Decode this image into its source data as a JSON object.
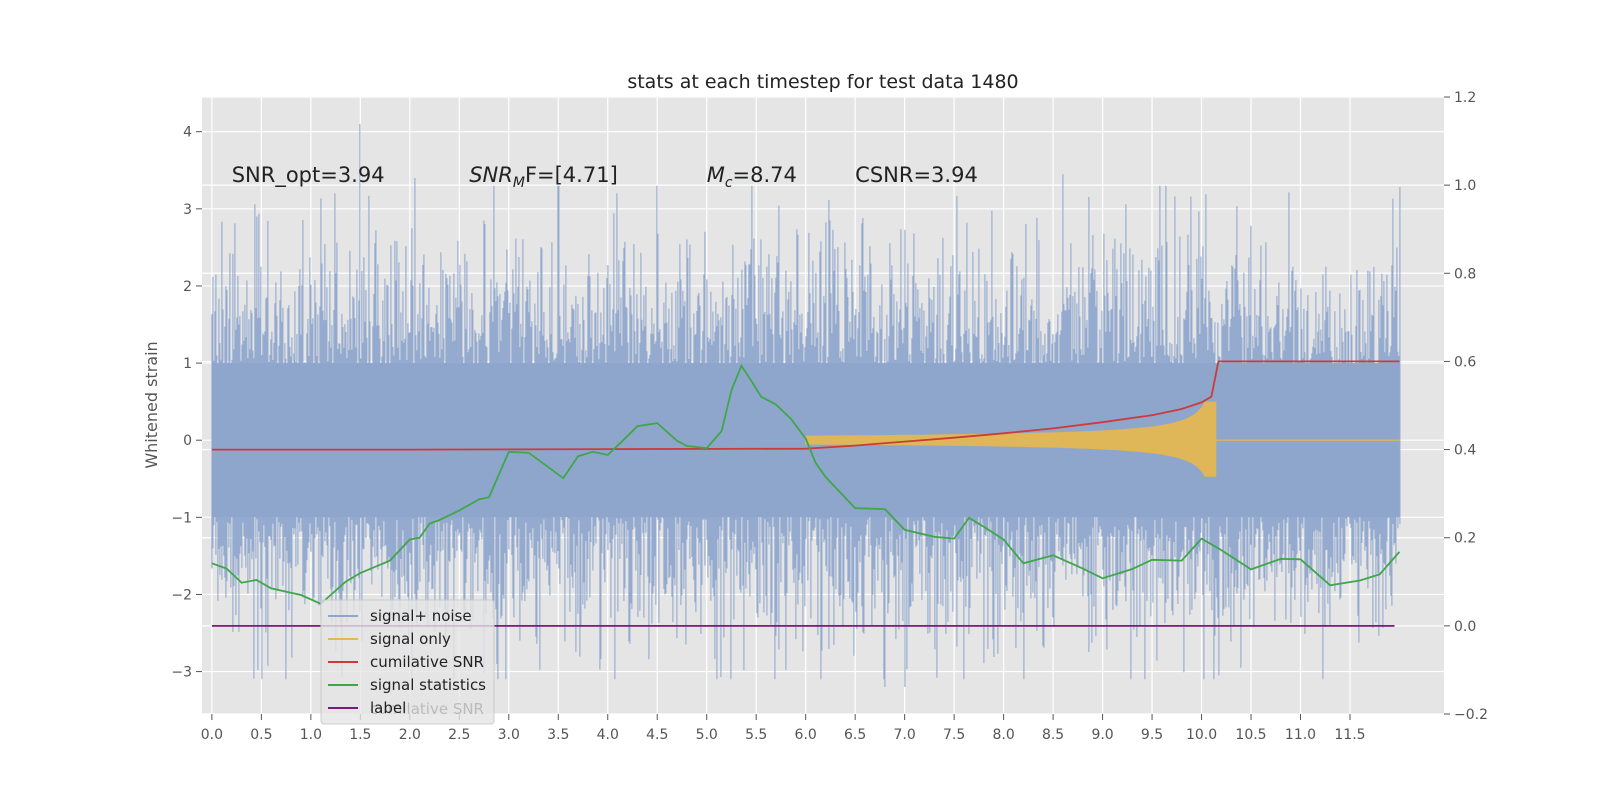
{
  "chart_data": {
    "type": "line",
    "title": "stats at each timestep for test data 1480",
    "ylabel": "Whitened strain",
    "xlabel": "",
    "xlim": [
      -0.1,
      12.45
    ],
    "ylim": [
      -3.55,
      4.45
    ],
    "y2lim": [
      -0.2,
      1.2
    ],
    "x_ticks": [
      0.0,
      0.5,
      1.0,
      1.5,
      2.0,
      2.5,
      3.0,
      3.5,
      4.0,
      4.5,
      5.0,
      5.5,
      6.0,
      6.5,
      7.0,
      7.5,
      8.0,
      8.5,
      9.0,
      9.5,
      10.0,
      10.5,
      11.0,
      11.5
    ],
    "x_tick_labels": [
      "0.0",
      "0.5",
      "1.0",
      "1.5",
      "2.0",
      "2.5",
      "3.0",
      "3.5",
      "4.0",
      "4.5",
      "5.0",
      "5.5",
      "6.0",
      "6.5",
      "7.0",
      "7.5",
      "8.0",
      "8.5",
      "9.0",
      "9.5",
      "10.0",
      "10.5",
      "11.0",
      "11.5"
    ],
    "y_ticks": [
      -3,
      -2,
      -1,
      0,
      1,
      2,
      3,
      4
    ],
    "y_tick_labels": [
      "−3",
      "−2",
      "−1",
      "0",
      "1",
      "2",
      "3",
      "4"
    ],
    "y2_ticks": [
      -0.2,
      0.0,
      0.2,
      0.4,
      0.6,
      0.8,
      1.0,
      1.2
    ],
    "y2_tick_labels": [
      "−0.2",
      "0.0",
      "0.2",
      "0.4",
      "0.6",
      "0.8",
      "1.0",
      "1.2"
    ],
    "grid": true,
    "legend_placement": "lower-left",
    "annotations": [
      {
        "x": 0.2,
        "y": 3.35,
        "prefix": "SNR_opt=",
        "value": "3.94"
      },
      {
        "x": 2.6,
        "y": 3.35,
        "prefix": "SNR",
        "sub": "M",
        "suffix": "F=",
        "value": "[4.71]",
        "italic": true
      },
      {
        "x": 5.0,
        "y": 3.35,
        "prefix": "M",
        "sub": "c",
        "suffix": "=",
        "value": "8.74",
        "italic": true
      },
      {
        "x": 6.5,
        "y": 3.35,
        "prefix": "CSNR=",
        "value": "3.94"
      }
    ],
    "ghost_legend_text": "cumilative SNR",
    "series": [
      {
        "name": "signal+ noise",
        "color": "#8fa6cc",
        "axis": "left",
        "generated": "noise",
        "x_range": [
          0.0,
          12.0
        ],
        "typical_envelope": [
          -1.0,
          1.0
        ],
        "peaks": [
          {
            "x": 1.5,
            "y": 4.1
          },
          {
            "x": 8.6,
            "y": 3.45
          },
          {
            "x": 2.05,
            "y": 3.4
          },
          {
            "x": 4.5,
            "y": 3.3
          },
          {
            "x": 3.5,
            "y": 3.3
          },
          {
            "x": 7.0,
            "y": -3.2
          },
          {
            "x": 6.8,
            "y": -3.2
          },
          {
            "x": 10.4,
            "y": -2.95
          }
        ]
      },
      {
        "name": "signal only",
        "color": "#e8b84b",
        "axis": "left",
        "generated": "chirp",
        "x_range": [
          6.0,
          12.0
        ],
        "merger_x": 10.15,
        "peak_amplitude": 0.5
      },
      {
        "name": "cumilative SNR",
        "color": "#cc3b3b",
        "axis": "right",
        "x": [
          0.0,
          2.0,
          4.0,
          6.0,
          6.5,
          7.0,
          7.5,
          8.0,
          8.5,
          9.0,
          9.5,
          9.8,
          10.0,
          10.1,
          10.17,
          12.0
        ],
        "y": [
          0.4,
          0.4,
          0.401,
          0.402,
          0.409,
          0.418,
          0.427,
          0.437,
          0.448,
          0.462,
          0.478,
          0.492,
          0.507,
          0.52,
          0.6,
          0.6
        ]
      },
      {
        "name": "signal statistics",
        "color": "#3fa64a",
        "axis": "right",
        "x": [
          0.0,
          0.15,
          0.3,
          0.45,
          0.6,
          0.9,
          1.1,
          1.2,
          1.35,
          1.5,
          1.8,
          2.0,
          2.1,
          2.2,
          2.3,
          2.5,
          2.7,
          2.8,
          3.0,
          3.2,
          3.4,
          3.55,
          3.7,
          3.85,
          4.0,
          4.15,
          4.3,
          4.5,
          4.7,
          4.8,
          5.0,
          5.15,
          5.25,
          5.35,
          5.45,
          5.55,
          5.7,
          5.85,
          6.0,
          6.1,
          6.2,
          6.5,
          6.8,
          7.0,
          7.3,
          7.5,
          7.65,
          7.8,
          8.0,
          8.2,
          8.5,
          8.8,
          9.0,
          9.3,
          9.5,
          9.8,
          10.0,
          10.2,
          10.5,
          10.8,
          11.0,
          11.3,
          11.6,
          11.8,
          12.0
        ],
        "y": [
          0.142,
          0.13,
          0.098,
          0.104,
          0.085,
          0.07,
          0.05,
          0.07,
          0.1,
          0.12,
          0.148,
          0.196,
          0.2,
          0.232,
          0.24,
          0.262,
          0.287,
          0.292,
          0.395,
          0.393,
          0.36,
          0.335,
          0.385,
          0.395,
          0.388,
          0.42,
          0.453,
          0.46,
          0.42,
          0.408,
          0.403,
          0.442,
          0.535,
          0.59,
          0.556,
          0.52,
          0.502,
          0.47,
          0.425,
          0.37,
          0.338,
          0.267,
          0.265,
          0.218,
          0.202,
          0.198,
          0.245,
          0.225,
          0.196,
          0.142,
          0.16,
          0.13,
          0.108,
          0.129,
          0.15,
          0.148,
          0.198,
          0.172,
          0.128,
          0.152,
          0.151,
          0.092,
          0.103,
          0.117,
          0.168
        ]
      },
      {
        "name": "label",
        "color": "#7a1a7a",
        "axis": "right",
        "x": [
          0.0,
          11.95
        ],
        "y": [
          0.0,
          0.0
        ]
      }
    ]
  }
}
